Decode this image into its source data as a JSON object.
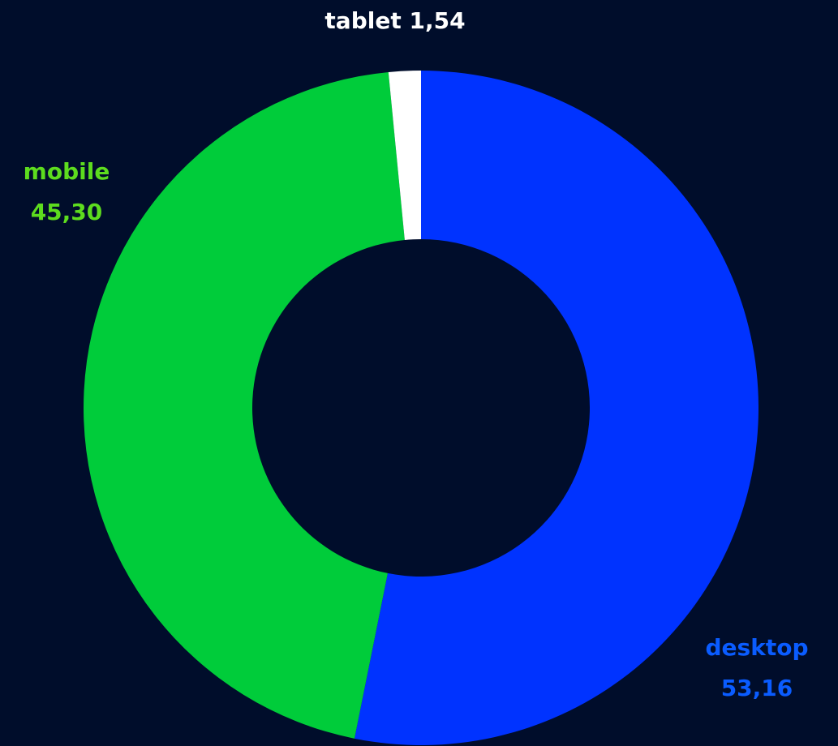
{
  "chart_data": {
    "type": "donut",
    "categories": [
      "desktop",
      "mobile",
      "tablet"
    ],
    "values": [
      53.16,
      45.3,
      1.54
    ],
    "value_labels": [
      "53,16",
      "45,30",
      "1,54"
    ],
    "colors": [
      "#0033ff",
      "#00cc3a",
      "#ffffff"
    ],
    "label_colors": [
      "#0a5cff",
      "#5ddc1e",
      "#ffffff"
    ]
  }
}
